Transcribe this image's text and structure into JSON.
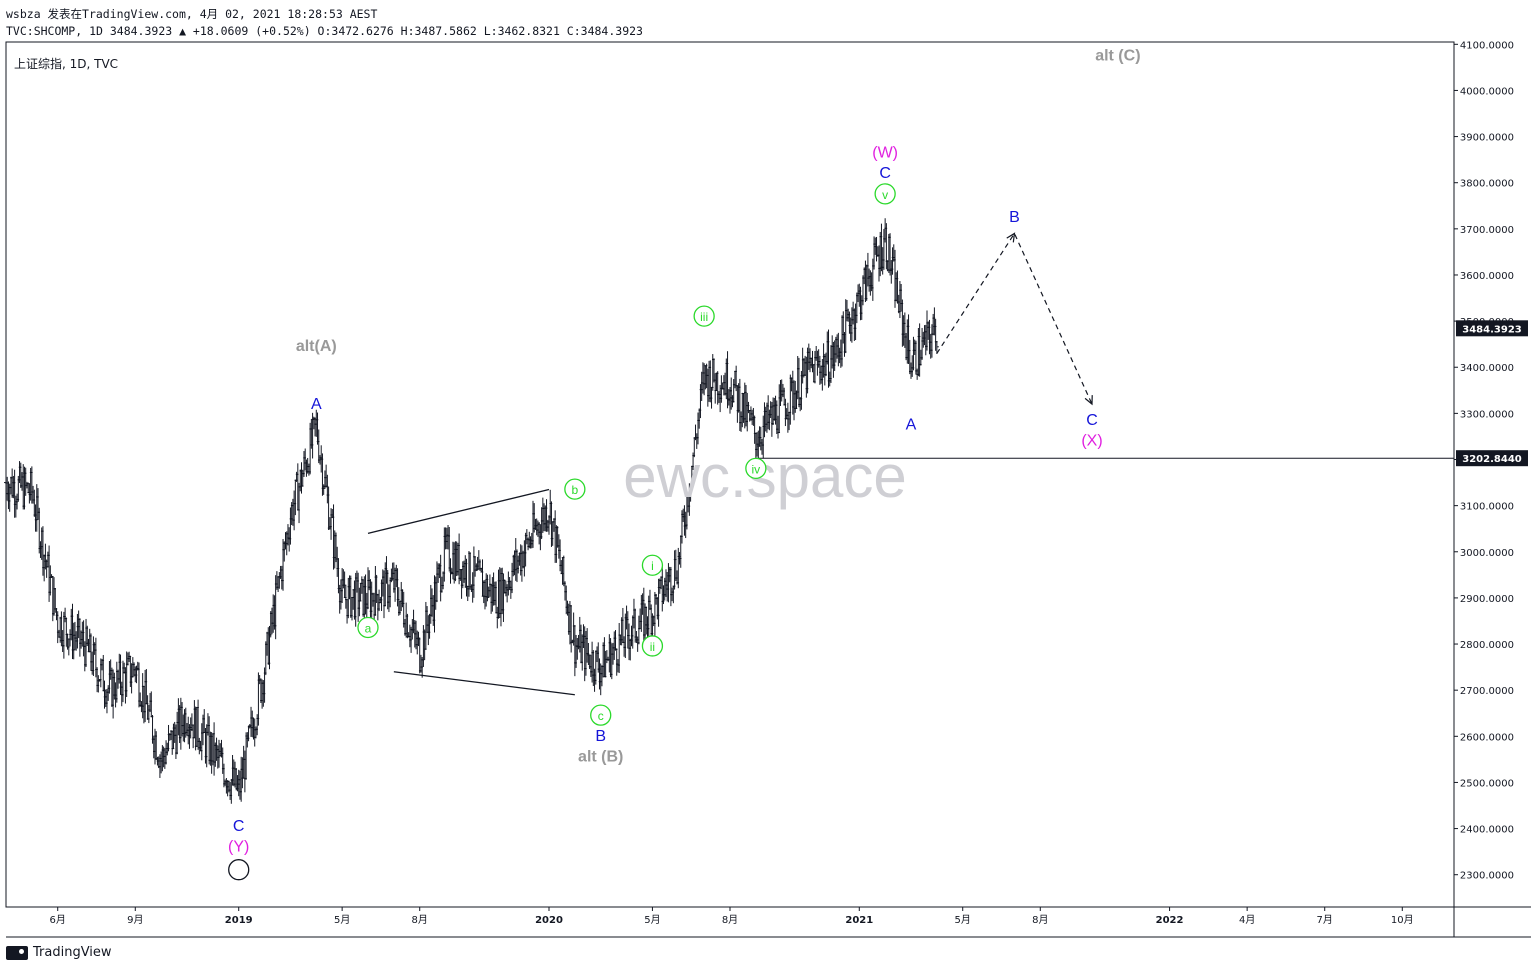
{
  "header": {
    "line1": "wsbza 发表在TradingView.com, 4月 02, 2021 18:28:53 AEST",
    "line2": "TVC:SHCOMP, 1D 3484.3923 ▲ +18.0609 (+0.52%) O:3472.6276 H:3487.5862 L:3462.8321 C:3484.3923",
    "symbol": "上证综指, 1D, TVC"
  },
  "footer": {
    "brand": "TradingView"
  },
  "watermark": "ewc.space",
  "chart_data": {
    "type": "ohlc",
    "y_axis": {
      "ticks": [
        "4100.0000",
        "4000.0000",
        "3900.0000",
        "3800.0000",
        "3700.0000",
        "3600.0000",
        "3500.0000",
        "3400.0000",
        "3300.0000",
        "3200.0000",
        "3100.0000",
        "3000.0000",
        "2900.0000",
        "2800.0000",
        "2700.0000",
        "2600.0000",
        "2500.0000",
        "2400.0000",
        "2300.0000"
      ],
      "ylim": [
        2230,
        4105
      ],
      "price_badge": "3484.3923",
      "level_badge": "3202.8440"
    },
    "x_axis": {
      "ticks": [
        "6月",
        "9月",
        "2019",
        "5月",
        "8月",
        "2020",
        "5月",
        "8月",
        "2021",
        "5月",
        "8月",
        "2022",
        "4月",
        "7月",
        "10月"
      ],
      "tick_dates": [
        "2018-06",
        "2018-09",
        "2019-01",
        "2019-05",
        "2019-08",
        "2020-01",
        "2020-05",
        "2020-08",
        "2021-01",
        "2021-05",
        "2021-08",
        "2022-01",
        "2022-04",
        "2022-07",
        "2022-10"
      ],
      "range": [
        "2018-04",
        "2022-12"
      ]
    },
    "price_path": [
      [
        "2018-04",
        3150
      ],
      [
        "2018-05",
        3130
      ],
      [
        "2018-06",
        2850
      ],
      [
        "2018-07",
        2800
      ],
      [
        "2018-08",
        2700
      ],
      [
        "2018-09",
        2750
      ],
      [
        "2018-10",
        2550
      ],
      [
        "2018-11",
        2650
      ],
      [
        "2019-01",
        2480
      ],
      [
        "2019-02",
        2750
      ],
      [
        "2019-03",
        3080
      ],
      [
        "2019-04",
        3270
      ],
      [
        "2019-05",
        2900
      ],
      [
        "2019-06",
        2900
      ],
      [
        "2019-07",
        2930
      ],
      [
        "2019-08",
        2780
      ],
      [
        "2019-09",
        3000
      ],
      [
        "2019-10",
        2950
      ],
      [
        "2019-11",
        2900
      ],
      [
        "2019-12",
        3000
      ],
      [
        "2020-01",
        3100
      ],
      [
        "2020-02",
        2800
      ],
      [
        "2020-03",
        2750
      ],
      [
        "2020-04",
        2820
      ],
      [
        "2020-05",
        2870
      ],
      [
        "2020-06",
        2980
      ],
      [
        "2020-07",
        3380
      ],
      [
        "2020-08",
        3370
      ],
      [
        "2020-09",
        3250
      ],
      [
        "2020-10",
        3310
      ],
      [
        "2020-11",
        3390
      ],
      [
        "2020-12",
        3420
      ],
      [
        "2021-01",
        3550
      ],
      [
        "2021-02",
        3680
      ],
      [
        "2021-03",
        3410
      ],
      [
        "2021-04",
        3484
      ]
    ],
    "projection": {
      "points": [
        [
          "2021-04",
          3430
        ],
        [
          "2021-07",
          3690
        ],
        [
          "2021-10",
          3320
        ]
      ],
      "style": "dashed"
    },
    "horizontal_level": 3202.844,
    "channel_lines": [
      {
        "from": [
          "2019-06",
          3040
        ],
        "to": [
          "2020-01",
          3135
        ]
      },
      {
        "from": [
          "2019-07",
          2740
        ],
        "to": [
          "2020-02",
          2690
        ]
      }
    ],
    "wave_labels": [
      {
        "text": "alt(A)",
        "date": "2019-04",
        "price": 3435,
        "color": "#999999"
      },
      {
        "text": "A",
        "date": "2019-04",
        "price": 3310,
        "color": "#1515d8"
      },
      {
        "text": "C",
        "date": "2019-01",
        "price": 2395,
        "color": "#1515d8"
      },
      {
        "text": "(Y)",
        "date": "2019-01",
        "price": 2350,
        "color": "#e020e0"
      },
      {
        "text": "a",
        "date": "2019-06",
        "price": 2825,
        "color": "#2bd92b",
        "circle": true
      },
      {
        "text": "b",
        "date": "2020-02",
        "price": 3125,
        "color": "#2bd92b",
        "circle": true
      },
      {
        "text": "c",
        "date": "2020-03",
        "price": 2635,
        "color": "#2bd92b",
        "circle": true
      },
      {
        "text": "B",
        "date": "2020-03",
        "price": 2590,
        "color": "#1515d8"
      },
      {
        "text": "alt (B)",
        "date": "2020-03",
        "price": 2545,
        "color": "#999999"
      },
      {
        "text": "i",
        "date": "2020-05",
        "price": 2960,
        "color": "#2bd92b",
        "circle": true
      },
      {
        "text": "ii",
        "date": "2020-05",
        "price": 2785,
        "color": "#2bd92b",
        "circle": true
      },
      {
        "text": "iii",
        "date": "2020-07",
        "price": 3500,
        "color": "#2bd92b",
        "circle": true
      },
      {
        "text": "iv",
        "date": "2020-09",
        "price": 3170,
        "color": "#2bd92b",
        "circle": true
      },
      {
        "text": "v",
        "date": "2021-02",
        "price": 3765,
        "color": "#2bd92b",
        "circle": true
      },
      {
        "text": "C",
        "date": "2021-02",
        "price": 3810,
        "color": "#1515d8"
      },
      {
        "text": "(W)",
        "date": "2021-02",
        "price": 3855,
        "color": "#e020e0"
      },
      {
        "text": "A",
        "date": "2021-03",
        "price": 3265,
        "color": "#1515d8"
      },
      {
        "text": "B",
        "date": "2021-07",
        "price": 3715,
        "color": "#1515d8"
      },
      {
        "text": "C",
        "date": "2021-10",
        "price": 3275,
        "color": "#1515d8"
      },
      {
        "text": "(X)",
        "date": "2021-10",
        "price": 3230,
        "color": "#e020e0"
      },
      {
        "text": "alt (C)",
        "date": "2021-11",
        "price": 4065,
        "color": "#999999"
      }
    ]
  }
}
